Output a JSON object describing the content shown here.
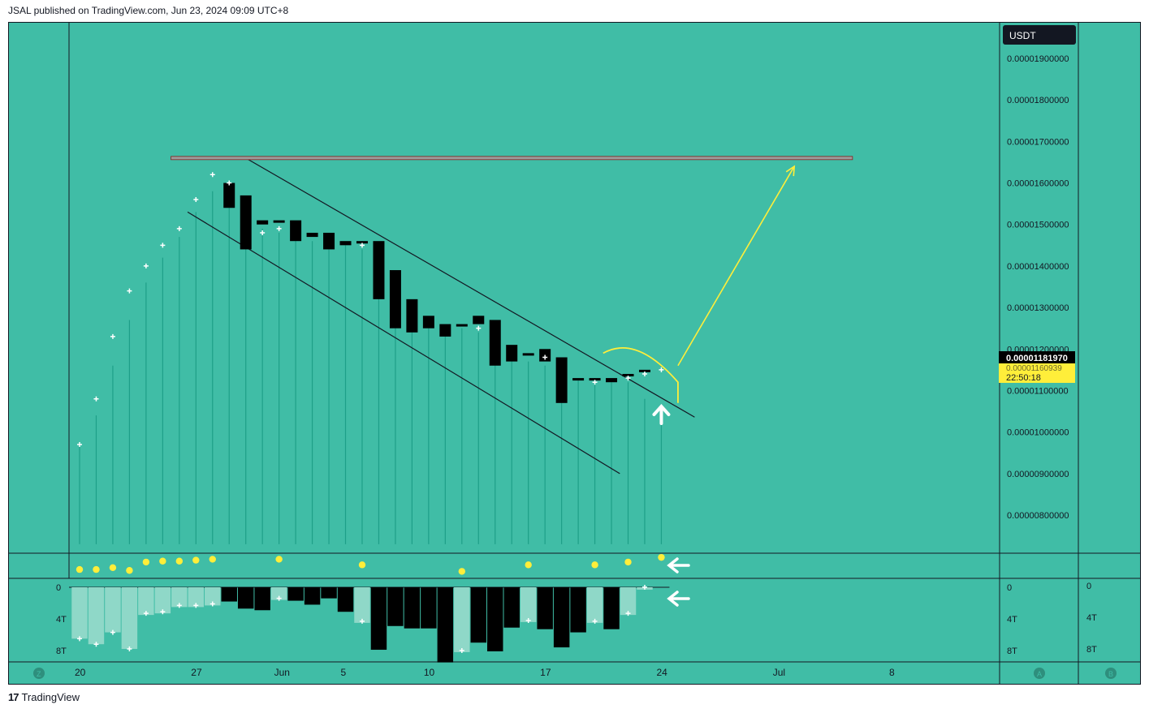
{
  "header": {
    "published_by": "JSAL published on TradingView.com, Jun 23, 2024 09:09 UTC+8"
  },
  "footer": {
    "logo_mark": "17",
    "brand": "TradingView"
  },
  "colors": {
    "background": "#40bda6",
    "grid_line": "#131722",
    "candle": "#000000",
    "wick": "#1e9f88",
    "sar_dot": "#ffffff",
    "yellow": "#ffee3a",
    "resistance_fill": "#9b9b9b",
    "resistance_stroke": "#8b1e1e",
    "volume_light": "#8fd8c8",
    "volume_dark": "#000000",
    "price_label_bg": "#000000",
    "countdown_bg": "#ffee3a"
  },
  "chart_data": {
    "type": "candlestick",
    "title": "",
    "currency_label": "USDT",
    "current_price_label": "0.00001181970",
    "secondary_price_label": "0.00001160939",
    "countdown_label": "22:50:18",
    "y_ticks": [
      {
        "value": 1.9e-05,
        "label": "0.00001900000"
      },
      {
        "value": 1.8e-05,
        "label": "0.00001800000"
      },
      {
        "value": 1.7e-05,
        "label": "0.00001700000"
      },
      {
        "value": 1.6e-05,
        "label": "0.00001600000"
      },
      {
        "value": 1.5e-05,
        "label": "0.00001500000"
      },
      {
        "value": 1.4e-05,
        "label": "0.00001400000"
      },
      {
        "value": 1.3e-05,
        "label": "0.00001300000"
      },
      {
        "value": 1.2e-05,
        "label": "0.00001200000"
      },
      {
        "value": 1.1e-05,
        "label": "0.00001100000"
      },
      {
        "value": 1e-05,
        "label": "0.00001000000"
      },
      {
        "value": 9e-06,
        "label": "0.00000900000"
      },
      {
        "value": 8e-06,
        "label": "0.00000800000"
      }
    ],
    "x_ticks": [
      {
        "day": 0,
        "label": "20"
      },
      {
        "day": 7,
        "label": "27"
      },
      {
        "day": 12,
        "label": "Jun"
      },
      {
        "day": 16,
        "label": "5"
      },
      {
        "day": 21,
        "label": "10"
      },
      {
        "day": 28,
        "label": "17"
      },
      {
        "day": 35,
        "label": "24"
      },
      {
        "day": 42,
        "label": "Jul"
      },
      {
        "day": 49,
        "label": "8"
      }
    ],
    "candles": [
      {
        "day": 9,
        "open": 1.6e-05,
        "close": 1.54e-05
      },
      {
        "day": 10,
        "open": 1.57e-05,
        "close": 1.44e-05
      },
      {
        "day": 11,
        "open": 1.51e-05,
        "close": 1.5e-05
      },
      {
        "day": 12,
        "open": 1.51e-05,
        "close": 1.51e-05
      },
      {
        "day": 13,
        "open": 1.51e-05,
        "close": 1.46e-05
      },
      {
        "day": 14,
        "open": 1.48e-05,
        "close": 1.47e-05
      },
      {
        "day": 15,
        "open": 1.48e-05,
        "close": 1.44e-05
      },
      {
        "day": 16,
        "open": 1.46e-05,
        "close": 1.45e-05
      },
      {
        "day": 17,
        "open": 1.46e-05,
        "close": 1.46e-05
      },
      {
        "day": 18,
        "open": 1.46e-05,
        "close": 1.32e-05
      },
      {
        "day": 19,
        "open": 1.39e-05,
        "close": 1.25e-05
      },
      {
        "day": 20,
        "open": 1.32e-05,
        "close": 1.24e-05
      },
      {
        "day": 21,
        "open": 1.28e-05,
        "close": 1.25e-05
      },
      {
        "day": 22,
        "open": 1.26e-05,
        "close": 1.23e-05
      },
      {
        "day": 23,
        "open": 1.26e-05,
        "close": 1.26e-05
      },
      {
        "day": 24,
        "open": 1.28e-05,
        "close": 1.26e-05
      },
      {
        "day": 25,
        "open": 1.27e-05,
        "close": 1.16e-05
      },
      {
        "day": 26,
        "open": 1.21e-05,
        "close": 1.17e-05
      },
      {
        "day": 27,
        "open": 1.19e-05,
        "close": 1.19e-05
      },
      {
        "day": 28,
        "open": 1.2e-05,
        "close": 1.17e-05
      },
      {
        "day": 29,
        "open": 1.18e-05,
        "close": 1.07e-05
      },
      {
        "day": 30,
        "open": 1.13e-05,
        "close": 1.13e-05
      },
      {
        "day": 31,
        "open": 1.13e-05,
        "close": 1.13e-05
      },
      {
        "day": 32,
        "open": 1.13e-05,
        "close": 1.12e-05
      },
      {
        "day": 33,
        "open": 1.14e-05,
        "close": 1.14e-05
      },
      {
        "day": 34,
        "open": 1.15e-05,
        "close": 1.15e-05
      }
    ],
    "sar_points": [
      {
        "day": 0,
        "value": 9.7e-06
      },
      {
        "day": 1,
        "value": 1.08e-05
      },
      {
        "day": 2,
        "value": 1.23e-05
      },
      {
        "day": 3,
        "value": 1.34e-05
      },
      {
        "day": 4,
        "value": 1.4e-05
      },
      {
        "day": 5,
        "value": 1.45e-05
      },
      {
        "day": 6,
        "value": 1.49e-05
      },
      {
        "day": 7,
        "value": 1.56e-05
      },
      {
        "day": 8,
        "value": 1.62e-05
      },
      {
        "day": 9,
        "value": 1.6e-05
      },
      {
        "day": 11,
        "value": 1.48e-05
      },
      {
        "day": 12,
        "value": 1.49e-05
      },
      {
        "day": 17,
        "value": 1.45e-05
      },
      {
        "day": 24,
        "value": 1.25e-05
      },
      {
        "day": 28,
        "value": 1.18e-05
      },
      {
        "day": 31,
        "value": 1.12e-05
      },
      {
        "day": 33,
        "value": 1.13e-05
      },
      {
        "day": 34,
        "value": 1.14e-05
      },
      {
        "day": 35,
        "value": 1.15e-05
      }
    ],
    "stems": [
      {
        "day": 0,
        "top": 9.7e-06
      },
      {
        "day": 1,
        "top": 1.04e-05
      },
      {
        "day": 2,
        "top": 1.16e-05
      },
      {
        "day": 3,
        "top": 1.27e-05
      },
      {
        "day": 4,
        "top": 1.36e-05
      },
      {
        "day": 5,
        "top": 1.42e-05
      },
      {
        "day": 6,
        "top": 1.47e-05
      },
      {
        "day": 7,
        "top": 1.53e-05
      },
      {
        "day": 8,
        "top": 1.58e-05
      },
      {
        "day": 9,
        "top": 1.59e-05
      },
      {
        "day": 10,
        "top": 1.5e-05
      },
      {
        "day": 11,
        "top": 1.49e-05
      },
      {
        "day": 12,
        "top": 1.48e-05
      },
      {
        "day": 13,
        "top": 1.47e-05
      },
      {
        "day": 14,
        "top": 1.46e-05
      },
      {
        "day": 15,
        "top": 1.45e-05
      },
      {
        "day": 16,
        "top": 1.45e-05
      },
      {
        "day": 17,
        "top": 1.44e-05
      },
      {
        "day": 18,
        "top": 1.43e-05
      },
      {
        "day": 19,
        "top": 1.35e-05
      },
      {
        "day": 20,
        "top": 1.28e-05
      },
      {
        "day": 21,
        "top": 1.26e-05
      },
      {
        "day": 22,
        "top": 1.25e-05
      },
      {
        "day": 23,
        "top": 1.25e-05
      },
      {
        "day": 24,
        "top": 1.24e-05
      },
      {
        "day": 25,
        "top": 1.2e-05
      },
      {
        "day": 26,
        "top": 1.18e-05
      },
      {
        "day": 27,
        "top": 1.17e-05
      },
      {
        "day": 28,
        "top": 1.16e-05
      },
      {
        "day": 29,
        "top": 1.15e-05
      },
      {
        "day": 30,
        "top": 1.13e-05
      },
      {
        "day": 31,
        "top": 1.12e-05
      },
      {
        "day": 32,
        "top": 1.12e-05
      },
      {
        "day": 33,
        "top": 1.12e-05
      },
      {
        "day": 34,
        "top": 1.08e-05
      },
      {
        "day": 35,
        "top": 1.05e-05
      }
    ],
    "stem_base": 7.3e-06,
    "upper_trendline": [
      {
        "day": 10,
        "value": 1.66e-05
      },
      {
        "day": 37,
        "value": 1.036e-05
      }
    ],
    "lower_trendline": [
      {
        "day": 6.5,
        "value": 1.53e-05
      },
      {
        "day": 32.5,
        "value": 9e-06
      }
    ],
    "resistance": {
      "day_start": 5.5,
      "day_end": 46.5,
      "value": 1.66e-05
    },
    "projection_arrow": [
      {
        "day": 36,
        "value": 1.16e-05
      },
      {
        "day": 43,
        "value": 1.64e-05
      }
    ],
    "yellow_arc": [
      {
        "day": 31.5,
        "value": 1.19e-05
      },
      {
        "day": 33.5,
        "value": 1.2e-05
      },
      {
        "day": 36,
        "value": 1.12e-05
      },
      {
        "day": 36,
        "value": 1.07e-05
      }
    ],
    "white_up_arrow_day": 35,
    "dots_indicator": [
      {
        "day": 0,
        "level": 0.7
      },
      {
        "day": 1,
        "level": 0.7
      },
      {
        "day": 2,
        "level": 0.6
      },
      {
        "day": 3,
        "level": 0.75
      },
      {
        "day": 4,
        "level": 0.3
      },
      {
        "day": 5,
        "level": 0.25
      },
      {
        "day": 6,
        "level": 0.25
      },
      {
        "day": 7,
        "level": 0.2
      },
      {
        "day": 8,
        "level": 0.15
      },
      {
        "day": 12,
        "level": 0.15
      },
      {
        "day": 17,
        "level": 0.45
      },
      {
        "day": 23,
        "level": 0.8
      },
      {
        "day": 27,
        "level": 0.45
      },
      {
        "day": 31,
        "level": 0.45
      },
      {
        "day": 33,
        "level": 0.3
      },
      {
        "day": 35,
        "level": 0.05
      }
    ],
    "volume_axis": {
      "ticks": [
        {
          "value": 0,
          "label": "0"
        },
        {
          "value": 4,
          "label": "4T"
        },
        {
          "value": 8,
          "label": "8T"
        }
      ],
      "max": 9.5
    },
    "volume_bars": [
      {
        "day": 0,
        "v": 6.5,
        "tone": "light"
      },
      {
        "day": 1,
        "v": 7.2,
        "tone": "light"
      },
      {
        "day": 2,
        "v": 5.7,
        "tone": "light"
      },
      {
        "day": 3,
        "v": 7.8,
        "tone": "light"
      },
      {
        "day": 4,
        "v": 3.5,
        "tone": "light"
      },
      {
        "day": 5,
        "v": 3.3,
        "tone": "light"
      },
      {
        "day": 6,
        "v": 2.5,
        "tone": "light"
      },
      {
        "day": 7,
        "v": 2.5,
        "tone": "light"
      },
      {
        "day": 8,
        "v": 2.3,
        "tone": "light"
      },
      {
        "day": 9,
        "v": 1.8,
        "tone": "dark"
      },
      {
        "day": 10,
        "v": 2.7,
        "tone": "dark"
      },
      {
        "day": 11,
        "v": 2.9,
        "tone": "dark"
      },
      {
        "day": 12,
        "v": 1.6,
        "tone": "light"
      },
      {
        "day": 13,
        "v": 1.7,
        "tone": "dark"
      },
      {
        "day": 14,
        "v": 2.2,
        "tone": "dark"
      },
      {
        "day": 15,
        "v": 1.4,
        "tone": "dark"
      },
      {
        "day": 16,
        "v": 3.1,
        "tone": "dark"
      },
      {
        "day": 17,
        "v": 4.5,
        "tone": "light"
      },
      {
        "day": 18,
        "v": 7.9,
        "tone": "dark"
      },
      {
        "day": 19,
        "v": 4.9,
        "tone": "dark"
      },
      {
        "day": 20,
        "v": 5.2,
        "tone": "dark"
      },
      {
        "day": 21,
        "v": 5.2,
        "tone": "dark"
      },
      {
        "day": 22,
        "v": 9.5,
        "tone": "dark"
      },
      {
        "day": 23,
        "v": 8.2,
        "tone": "light"
      },
      {
        "day": 24,
        "v": 7.0,
        "tone": "dark"
      },
      {
        "day": 25,
        "v": 8.1,
        "tone": "dark"
      },
      {
        "day": 26,
        "v": 5.1,
        "tone": "dark"
      },
      {
        "day": 27,
        "v": 4.4,
        "tone": "light"
      },
      {
        "day": 28,
        "v": 5.3,
        "tone": "dark"
      },
      {
        "day": 29,
        "v": 7.6,
        "tone": "dark"
      },
      {
        "day": 30,
        "v": 5.7,
        "tone": "dark"
      },
      {
        "day": 31,
        "v": 4.5,
        "tone": "light"
      },
      {
        "day": 32,
        "v": 5.3,
        "tone": "dark"
      },
      {
        "day": 33,
        "v": 3.5,
        "tone": "light"
      },
      {
        "day": 34,
        "v": 0.3,
        "tone": "light"
      }
    ],
    "volume_markers": [
      {
        "day": 0,
        "v": 6.5
      },
      {
        "day": 1,
        "v": 7.2
      },
      {
        "day": 2,
        "v": 5.7
      },
      {
        "day": 3,
        "v": 7.8
      },
      {
        "day": 4,
        "v": 3.3
      },
      {
        "day": 5,
        "v": 3.1
      },
      {
        "day": 6,
        "v": 2.3
      },
      {
        "day": 7,
        "v": 2.3
      },
      {
        "day": 8,
        "v": 2.1
      },
      {
        "day": 12,
        "v": 1.4
      },
      {
        "day": 17,
        "v": 4.3
      },
      {
        "day": 23,
        "v": 8.0
      },
      {
        "day": 27,
        "v": 4.2
      },
      {
        "day": 31,
        "v": 4.3
      },
      {
        "day": 33,
        "v": 3.3
      },
      {
        "day": 34,
        "v": 0.0
      }
    ],
    "scale_badges": {
      "left": "Z",
      "right_a": "A",
      "right_b": "B"
    }
  }
}
